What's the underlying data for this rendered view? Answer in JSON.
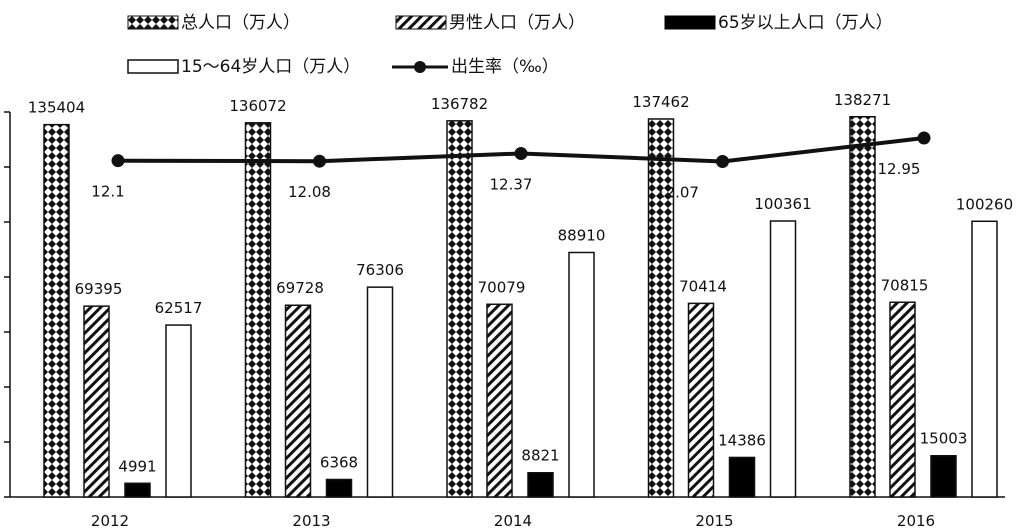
{
  "chart_data": {
    "type": "bar",
    "categories": [
      "2012",
      "2013",
      "2014",
      "2015",
      "2016"
    ],
    "series": [
      {
        "name": "总人口（万人）",
        "values": [
          135404,
          136072,
          136782,
          137462,
          138271
        ],
        "pattern": "diamond"
      },
      {
        "name": "男性人口（万人）",
        "values": [
          69395,
          69728,
          70079,
          70414,
          70815
        ],
        "pattern": "hatch"
      },
      {
        "name": "65岁以上人口（万人）",
        "values": [
          4991,
          6368,
          8821,
          14386,
          15003
        ],
        "pattern": "solid"
      },
      {
        "name": "15～64岁人口（万人）",
        "values": [
          62517,
          76306,
          88910,
          100361,
          100260
        ],
        "pattern": "open"
      }
    ],
    "line_series": {
      "name": "出生率（‰）",
      "values": [
        12.1,
        12.08,
        12.37,
        12.07,
        12.95
      ]
    },
    "legend_placement": "top",
    "grid": false,
    "colors": {
      "solid": "#000000",
      "stroke": "#111111",
      "open": "#ffffff"
    }
  }
}
